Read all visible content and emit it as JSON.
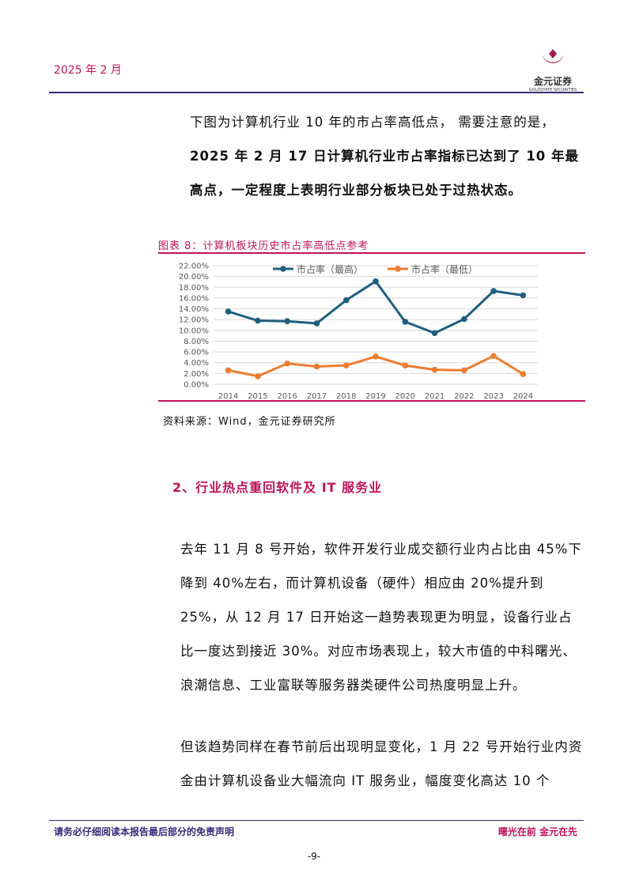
{
  "header": {
    "date": "2025 年 2 月",
    "logo_name": "金元证券",
    "logo_en": "GOLDSTATE SECURITIES"
  },
  "intro": {
    "line1": "下图为计算机行业 10 年的市占率高低点， 需要注意的是，",
    "bold": "2025 年 2 月 17 日计算机行业市占率指标已达到了 10 年最高点，一定程度上表明行业部分板块已处于过热状态。"
  },
  "figure": {
    "title": "图表 8：计算机板块历史市占率高低点参考",
    "source": "资料来源：Wind，金元证券研究所"
  },
  "chart_data": {
    "type": "line",
    "categories": [
      "2014",
      "2015",
      "2016",
      "2017",
      "2018",
      "2019",
      "2020",
      "2021",
      "2022",
      "2023",
      "2024"
    ],
    "series": [
      {
        "name": "市占率（最高）",
        "color": "#1f5f7f",
        "values": [
          13.5,
          11.8,
          11.7,
          11.3,
          15.6,
          19.1,
          11.6,
          9.5,
          12.1,
          17.3,
          16.5
        ]
      },
      {
        "name": "市占率（最低）",
        "color": "#ed7d31",
        "values": [
          2.6,
          1.5,
          3.85,
          3.3,
          3.5,
          5.15,
          3.5,
          2.7,
          2.6,
          5.25,
          1.9
        ]
      }
    ],
    "yticks": [
      "0.00%",
      "2.00%",
      "4.00%",
      "6.00%",
      "8.00%",
      "10.00%",
      "12.00%",
      "14.00%",
      "16.00%",
      "18.00%",
      "20.00%",
      "22.00%"
    ],
    "ylim": [
      0,
      22
    ],
    "grid": true,
    "legend": "top"
  },
  "section": {
    "title": "2、行业热点重回软件及 IT 服务业"
  },
  "para2": "去年 11 月 8 号开始，软件开发行业成交额行业内占比由 45%下降到 40%左右，而计算机设备（硬件）相应由 20%提升到 25%，从 12 月 17 日开始这一趋势表现更为明显，设备行业占比一度达到接近 30%。对应市场表现上，较大市值的中科曙光、浪潮信息、工业富联等服务器类硬件公司热度明显上升。",
  "para3": "但该趋势同样在春节前后出现明显变化，1 月 22 号开始行业内资金由计算机设备业大幅流向 IT 服务业，幅度变化高达 10 个",
  "footer": {
    "disclaimer": "请务必仔细阅读本报告最后部分的免责声明",
    "slogan": "曙光在前 金元在先",
    "page": "-9-"
  }
}
